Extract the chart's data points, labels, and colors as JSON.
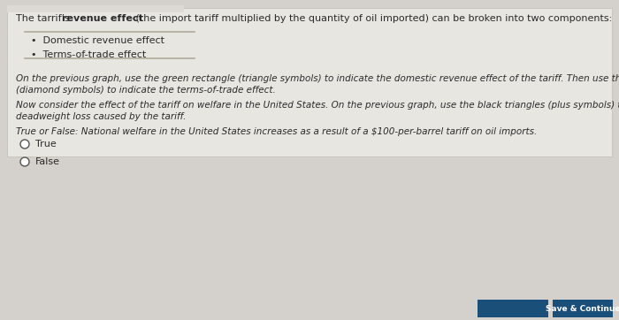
{
  "background_color": "#d4d0cb",
  "upper_panel_color": "#e8e6e1",
  "lower_panel_color": "#dddad5",
  "text_color": "#2a2a2a",
  "line_color": "#b0aa9a",
  "button_color": "#1a4f7a",
  "button2_color": "#2a6090",
  "title_normal1": "The tarrif’s ",
  "title_bold": "revenue effect",
  "title_normal2": " (the import tariff multiplied by the quantity of oil imported) can be broken into two components:",
  "bullet1": "•  Domestic revenue effect",
  "bullet2": "•  Terms-of-trade effect",
  "para1_line1": "On the previous graph, use the green rectangle (triangle symbols) to indicate the domestic revenue effect of the tariff. Then use the purple rectangle",
  "para1_line2": "(diamond symbols) to indicate the terms-of-trade effect.",
  "para2_line1": "Now consider the effect of the tariff on welfare in the United States. On the previous graph, use the black triangles (plus symbols) to indicate the",
  "para2_line2": "deadweight loss caused by the tariff.",
  "para3": "True or False: National welfare in the United States increases as a result of a $100-per-barrel tariff on oil imports.",
  "radio_true": "True",
  "radio_false": "False",
  "btn1_text": "Save & Continue",
  "font_size": 8.0,
  "font_size_small": 7.5
}
